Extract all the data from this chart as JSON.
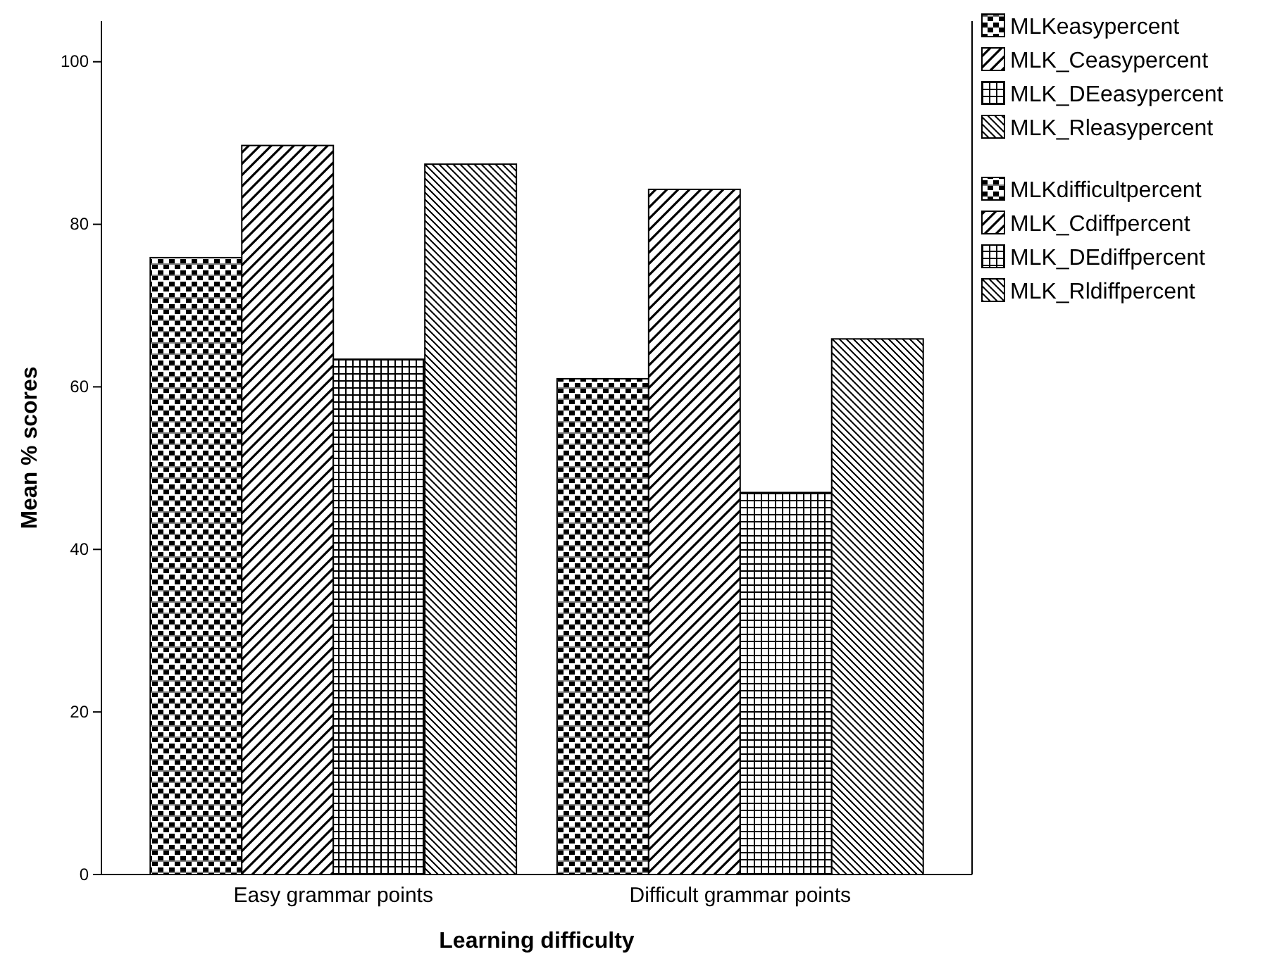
{
  "chart_data": {
    "type": "bar",
    "xlabel": "Learning difficulty",
    "ylabel": "Mean % scores",
    "categories": [
      "Easy grammar points",
      "Difficult grammar points"
    ],
    "series": [
      {
        "name": "MLKeasypercent",
        "color": "#000000",
        "values": [
          75.9,
          null
        ]
      },
      {
        "name": "MLK_Ceasypercent",
        "color": "#000000",
        "values": [
          89.7,
          null
        ]
      },
      {
        "name": "MLK_DEeasypercent",
        "color": "#000000",
        "values": [
          63.4,
          null
        ]
      },
      {
        "name": "MLK_Rleasypercent",
        "color": "#000000",
        "values": [
          87.4,
          null
        ]
      },
      {
        "name": "MLKdifficultpercent",
        "color": "#000000",
        "values": [
          null,
          61.0
        ]
      },
      {
        "name": "MLK_Cdiffpercent",
        "color": "#000000",
        "values": [
          null,
          84.3
        ]
      },
      {
        "name": "MLK_DEdiffpercent",
        "color": "#000000",
        "values": [
          null,
          47.0
        ]
      },
      {
        "name": "MLK_Rldiffpercent",
        "color": "#000000",
        "values": [
          null,
          65.9
        ]
      }
    ],
    "ylim": [
      0,
      105
    ],
    "yticks": [
      0,
      20,
      40,
      60,
      80,
      100
    ],
    "grid": false,
    "legend": "right"
  }
}
